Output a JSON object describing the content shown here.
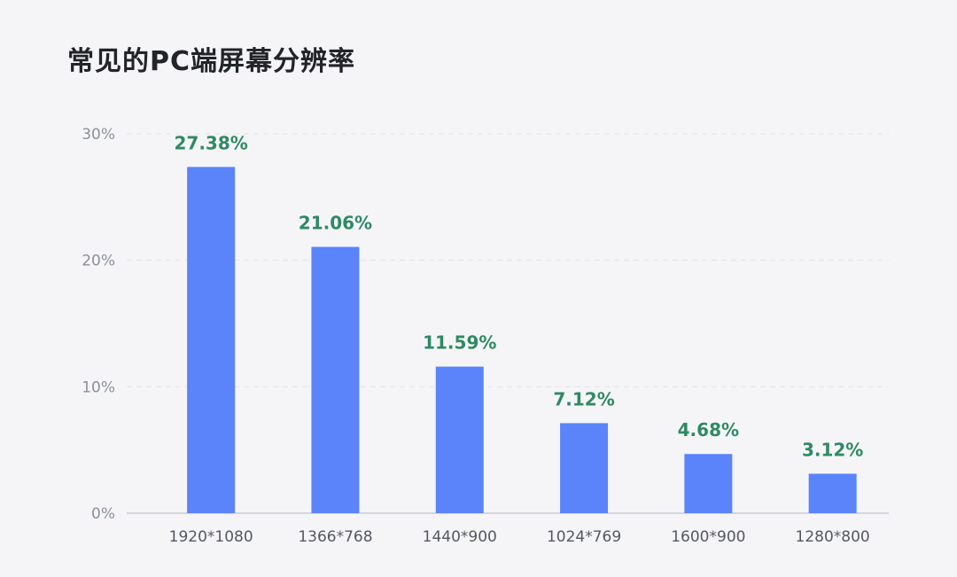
{
  "chart_data": {
    "type": "bar",
    "title": "常见的PC端屏幕分辨率",
    "categories": [
      "1920*1080",
      "1366*768",
      "1440*900",
      "1024*769",
      "1600*900",
      "1280*800"
    ],
    "values": [
      27.38,
      21.06,
      11.59,
      7.12,
      4.68,
      3.12
    ],
    "data_labels": [
      "27.38%",
      "21.06%",
      "11.59%",
      "7.12%",
      "4.68%",
      "3.12%"
    ],
    "ylim": [
      0,
      30
    ],
    "yticks": [
      0,
      10,
      20,
      30
    ],
    "ytick_labels": [
      "0%",
      "10%",
      "20%",
      "30%"
    ],
    "xlabel": "",
    "ylabel": "",
    "grid": "horizontal-dashed",
    "colors": {
      "bar": "#5b84fa",
      "data_label": "#2f8a63",
      "grid": "#e2e3e8",
      "axis": "#c9cbd1",
      "tick_label": "#8d9099",
      "category_label": "#55585f",
      "background": "#f5f5f8"
    }
  }
}
